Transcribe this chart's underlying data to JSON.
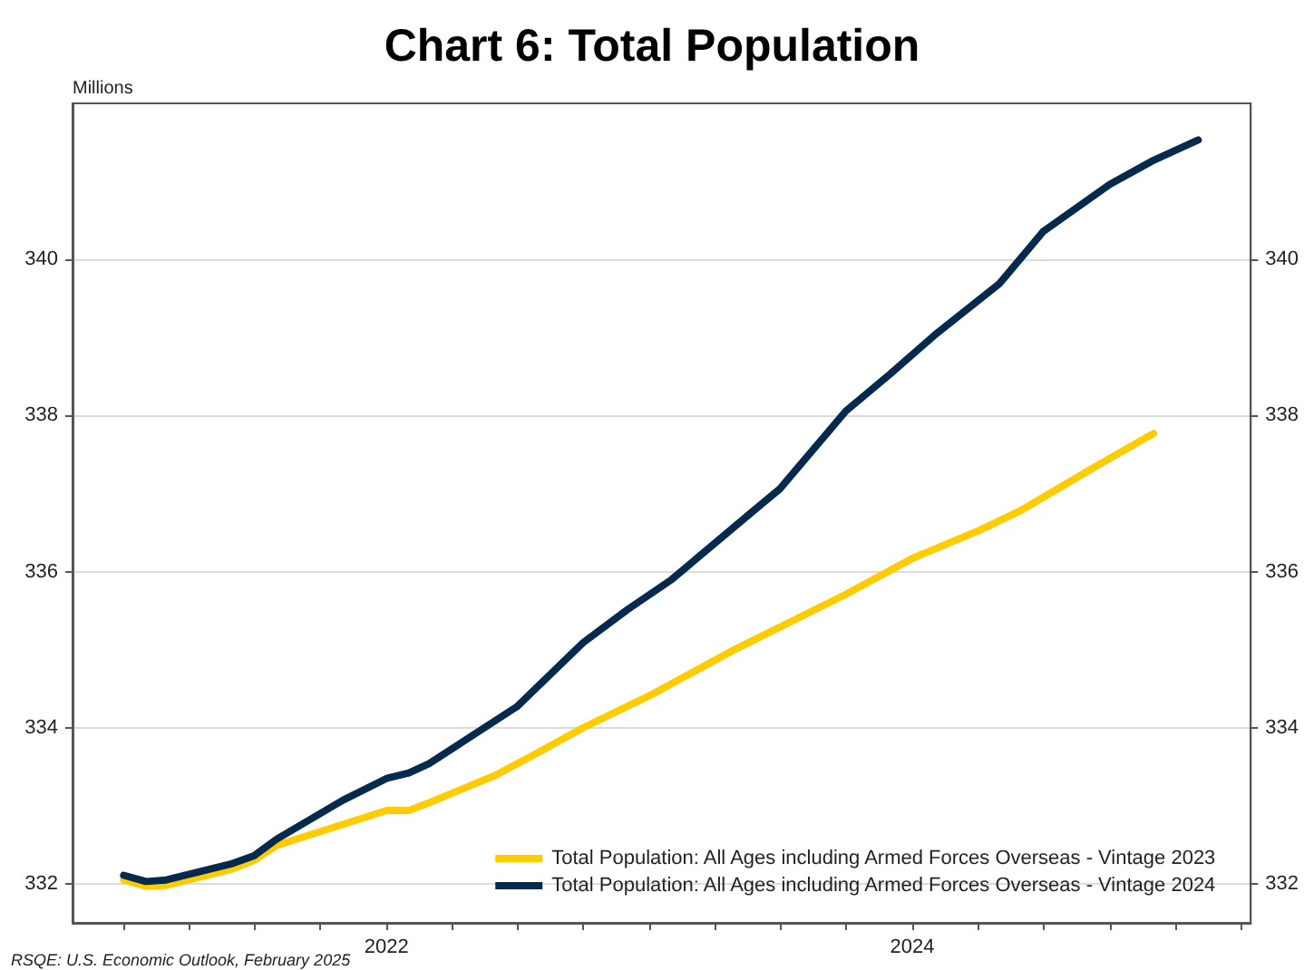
{
  "chart_data": {
    "type": "line",
    "title": "Chart 6: Total Population",
    "ylabel": "Millions",
    "annotations": [
      "RSQE: U.S. Economic Outlook, February 2025"
    ],
    "series": [
      {
        "name": "Total Population: All Ages including Armed Forces Overseas - Vintage 2023",
        "color": "#ffcc00",
        "x": [
          "2021-01",
          "2021-02",
          "2021-03",
          "2021-06",
          "2021-07",
          "2021-08",
          "2022-01",
          "2022-02",
          "2022-03",
          "2022-06",
          "2022-08",
          "2022-10",
          "2023-01",
          "2023-05",
          "2023-10",
          "2024-01",
          "2024-04",
          "2024-06",
          "2024-09",
          "2024-10",
          "2024-12"
        ],
        "values": [
          332.05,
          331.97,
          331.98,
          332.19,
          332.3,
          332.49,
          332.94,
          332.94,
          333.04,
          333.39,
          333.69,
          334.0,
          334.41,
          335.01,
          335.71,
          336.17,
          336.52,
          336.79,
          337.29,
          337.45,
          337.77
        ]
      },
      {
        "name": "Total Population: All Ages including Armed Forces Overseas - Vintage 2024",
        "color": "#062a4d",
        "x": [
          "2021-01",
          "2021-02",
          "2021-03",
          "2021-06",
          "2021-07",
          "2021-08",
          "2021-11",
          "2022-01",
          "2022-02",
          "2022-03",
          "2022-07",
          "2022-10",
          "2022-12",
          "2023-02",
          "2023-06",
          "2023-07",
          "2023-10",
          "2023-12",
          "2024-02",
          "2024-05",
          "2024-07",
          "2024-10",
          "2024-12",
          "2025-02"
        ],
        "values": [
          332.11,
          332.03,
          332.05,
          332.26,
          332.36,
          332.57,
          333.07,
          333.35,
          333.42,
          333.54,
          334.27,
          335.09,
          335.51,
          335.9,
          336.83,
          337.06,
          338.06,
          338.53,
          339.03,
          339.69,
          340.36,
          340.96,
          341.27,
          341.53
        ]
      }
    ],
    "xlim": [
      "2020-10-22",
      "2025-04-15"
    ],
    "xticks": [
      {
        "value": "2021-01-01",
        "label": null
      },
      {
        "value": "2021-04-01",
        "label": null
      },
      {
        "value": "2021-07-01",
        "label": null
      },
      {
        "value": "2021-10-01",
        "label": null
      },
      {
        "value": "2022-01-01",
        "label": "2022"
      },
      {
        "value": "2022-04-01",
        "label": null
      },
      {
        "value": "2022-07-01",
        "label": null
      },
      {
        "value": "2022-10-01",
        "label": null
      },
      {
        "value": "2023-01-01",
        "label": null
      },
      {
        "value": "2023-04-01",
        "label": null
      },
      {
        "value": "2023-07-01",
        "label": null
      },
      {
        "value": "2023-10-01",
        "label": null
      },
      {
        "value": "2024-01-01",
        "label": "2024"
      },
      {
        "value": "2024-04-01",
        "label": null
      },
      {
        "value": "2024-07-01",
        "label": null
      },
      {
        "value": "2024-10-01",
        "label": null
      },
      {
        "value": "2025-01-01",
        "label": null
      },
      {
        "value": "2025-04-01",
        "label": null
      }
    ],
    "ylim": [
      331.5,
      342
    ],
    "yticks": [
      332,
      334,
      336,
      338,
      340
    ],
    "y2lim": [
      331.5,
      342
    ],
    "y2ticks": [
      332,
      334,
      336,
      338,
      340
    ],
    "grid": "y",
    "legend": "bottom right",
    "marker": "none",
    "line_style": "solid"
  }
}
